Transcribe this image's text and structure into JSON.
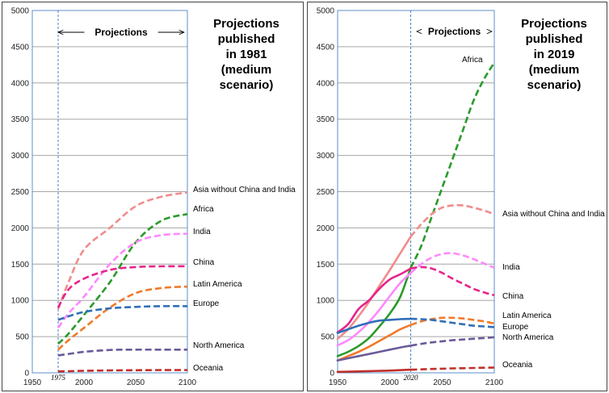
{
  "chart_data": [
    {
      "type": "line",
      "title_lines": [
        "Projections",
        "published",
        "in 1981",
        "(medium",
        "scenario)"
      ],
      "projections_label": "Projections",
      "projection_start_label": "1975",
      "projection_start": 1975,
      "xlim": [
        1950,
        2100
      ],
      "ylim": [
        0,
        5000
      ],
      "xticks": [
        1950,
        2000,
        2050,
        2100
      ],
      "yticks": [
        0,
        500,
        1000,
        1500,
        2000,
        2500,
        3000,
        3500,
        4000,
        4500,
        5000
      ],
      "grid": true,
      "series": [
        {
          "name": "Asia without China and India",
          "color": "#f08c8c",
          "x": [
            1975,
            1985,
            2000,
            2025,
            2050,
            2075,
            2100
          ],
          "y": [
            880,
            1250,
            1700,
            2000,
            2300,
            2430,
            2490
          ]
        },
        {
          "name": "Africa",
          "color": "#2a9a2a",
          "x": [
            1975,
            1985,
            2000,
            2025,
            2050,
            2075,
            2100
          ],
          "y": [
            400,
            540,
            800,
            1250,
            1800,
            2100,
            2190
          ]
        },
        {
          "name": "India",
          "color": "#ff88ff",
          "x": [
            1975,
            1985,
            2000,
            2025,
            2050,
            2075,
            2100
          ],
          "y": [
            620,
            820,
            1050,
            1500,
            1800,
            1900,
            1920
          ]
        },
        {
          "name": "China",
          "color": "#e8248c",
          "x": [
            1975,
            1985,
            2000,
            2025,
            2050,
            2075,
            2100
          ],
          "y": [
            900,
            1150,
            1300,
            1420,
            1460,
            1470,
            1470
          ]
        },
        {
          "name": "Latin America",
          "color": "#f07a2a",
          "x": [
            1975,
            1985,
            2000,
            2025,
            2050,
            2075,
            2100
          ],
          "y": [
            320,
            450,
            620,
            900,
            1100,
            1170,
            1190
          ]
        },
        {
          "name": "Europe",
          "color": "#2f6fb8",
          "x": [
            1975,
            1985,
            2000,
            2025,
            2050,
            2075,
            2100
          ],
          "y": [
            730,
            780,
            840,
            890,
            910,
            920,
            920
          ]
        },
        {
          "name": "North America",
          "color": "#6a5a9a",
          "x": [
            1975,
            1985,
            2000,
            2025,
            2050,
            2075,
            2100
          ],
          "y": [
            240,
            260,
            290,
            315,
            320,
            320,
            320
          ]
        },
        {
          "name": "Oceania",
          "color": "#c0302a",
          "x": [
            1975,
            1985,
            2000,
            2025,
            2050,
            2075,
            2100
          ],
          "y": [
            20,
            22,
            28,
            33,
            36,
            38,
            38
          ]
        }
      ]
    },
    {
      "type": "line",
      "title_lines": [
        "Projections",
        "published",
        "in 2019",
        "(medium",
        "scenario)"
      ],
      "projections_label": "Projections",
      "projection_start_label": "2020",
      "projection_start": 2020,
      "xlim": [
        1950,
        2100
      ],
      "ylim": [
        0,
        5000
      ],
      "xticks": [
        1950,
        2000,
        2050,
        2100
      ],
      "yticks": [
        0,
        500,
        1000,
        1500,
        2000,
        2500,
        3000,
        3500,
        4000,
        4500,
        5000
      ],
      "grid": true,
      "series": [
        {
          "name": "Africa",
          "color": "#2a9a2a",
          "x": [
            1950,
            1960,
            1970,
            1980,
            1990,
            2000,
            2010,
            2020,
            2030,
            2040,
            2050,
            2060,
            2070,
            2080,
            2090,
            2100
          ],
          "y": [
            230,
            290,
            370,
            480,
            640,
            820,
            1050,
            1450,
            1750,
            2150,
            2550,
            2950,
            3350,
            3750,
            4050,
            4280
          ]
        },
        {
          "name": "Asia without China and India",
          "color": "#f08c8c",
          "x": [
            1950,
            1960,
            1970,
            1980,
            1990,
            2000,
            2010,
            2020,
            2030,
            2040,
            2050,
            2060,
            2070,
            2080,
            2090,
            2100
          ],
          "y": [
            470,
            600,
            780,
            980,
            1200,
            1420,
            1650,
            1880,
            2050,
            2190,
            2280,
            2310,
            2310,
            2280,
            2240,
            2190
          ]
        },
        {
          "name": "India",
          "color": "#ff88ff",
          "x": [
            1950,
            1960,
            1970,
            1980,
            1990,
            2000,
            2010,
            2020,
            2030,
            2040,
            2050,
            2060,
            2070,
            2080,
            2090,
            2100
          ],
          "y": [
            380,
            450,
            560,
            700,
            870,
            1060,
            1240,
            1380,
            1500,
            1590,
            1640,
            1650,
            1620,
            1570,
            1510,
            1450
          ]
        },
        {
          "name": "China",
          "color": "#e8248c",
          "x": [
            1950,
            1960,
            1970,
            1980,
            1990,
            2000,
            2010,
            2020,
            2030,
            2040,
            2050,
            2060,
            2070,
            2080,
            2090,
            2100
          ],
          "y": [
            560,
            670,
            880,
            1000,
            1160,
            1290,
            1360,
            1440,
            1460,
            1440,
            1380,
            1300,
            1230,
            1160,
            1110,
            1070
          ]
        },
        {
          "name": "Latin America",
          "color": "#f07a2a",
          "x": [
            1950,
            1960,
            1970,
            1980,
            1990,
            2000,
            2010,
            2020,
            2030,
            2040,
            2050,
            2060,
            2070,
            2080,
            2090,
            2100
          ],
          "y": [
            170,
            230,
            290,
            360,
            440,
            520,
            600,
            660,
            710,
            740,
            760,
            760,
            750,
            730,
            710,
            680
          ]
        },
        {
          "name": "Europe",
          "color": "#2f6fb8",
          "x": [
            1950,
            1960,
            1970,
            1980,
            1990,
            2000,
            2010,
            2020,
            2030,
            2040,
            2050,
            2060,
            2070,
            2080,
            2090,
            2100
          ],
          "y": [
            550,
            600,
            650,
            690,
            720,
            730,
            740,
            745,
            740,
            730,
            710,
            690,
            670,
            650,
            640,
            630
          ]
        },
        {
          "name": "North America",
          "color": "#6a5a9a",
          "x": [
            1950,
            1960,
            1970,
            1980,
            1990,
            2000,
            2010,
            2020,
            2030,
            2040,
            2050,
            2060,
            2070,
            2080,
            2090,
            2100
          ],
          "y": [
            170,
            200,
            230,
            260,
            290,
            320,
            350,
            375,
            400,
            420,
            435,
            450,
            460,
            470,
            480,
            490
          ]
        },
        {
          "name": "Oceania",
          "color": "#c0302a",
          "x": [
            1950,
            1960,
            1970,
            1980,
            1990,
            2000,
            2010,
            2020,
            2030,
            2040,
            2050,
            2060,
            2070,
            2080,
            2090,
            2100
          ],
          "y": [
            13,
            16,
            20,
            23,
            27,
            31,
            37,
            43,
            48,
            53,
            57,
            61,
            64,
            67,
            70,
            72
          ]
        }
      ]
    }
  ]
}
